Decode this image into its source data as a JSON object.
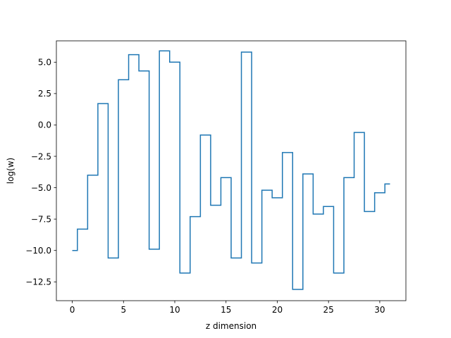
{
  "chart_data": {
    "type": "line",
    "drawstyle": "steps-mid",
    "title": "",
    "xlabel": "z dimension",
    "ylabel": "log(w)",
    "xlim": [
      -1.55,
      32.55
    ],
    "ylim": [
      -14.0,
      6.7
    ],
    "xticks": [
      0,
      5,
      10,
      15,
      20,
      25,
      30
    ],
    "yticks": [
      5.0,
      2.5,
      0.0,
      -2.5,
      -5.0,
      -7.5,
      -10.0,
      -12.5
    ],
    "xtick_labels": [
      "0",
      "5",
      "10",
      "15",
      "20",
      "25",
      "30"
    ],
    "ytick_labels": [
      "5.0",
      "2.5",
      "0.0",
      "−2.5",
      "−5.0",
      "−7.5",
      "−10.0",
      "−12.5"
    ],
    "grid": false,
    "legend": "none",
    "line_color": "#1f77b4",
    "series": [
      {
        "x": [
          0,
          1,
          2,
          3,
          4,
          5,
          6,
          7,
          8,
          9,
          10,
          11,
          12,
          13,
          14,
          15,
          16,
          17,
          18,
          19,
          20,
          21,
          22,
          23,
          24,
          25,
          26,
          27,
          28,
          29,
          30,
          31
        ],
        "values": [
          -10.0,
          -8.3,
          -4.0,
          1.7,
          -10.6,
          3.6,
          5.6,
          4.3,
          -9.9,
          5.9,
          5.0,
          -11.8,
          -7.3,
          -0.8,
          -6.4,
          -4.2,
          -10.6,
          5.8,
          -11.0,
          -5.2,
          -5.8,
          -2.2,
          -13.1,
          -3.9,
          -7.1,
          -6.5,
          -11.8,
          -4.2,
          -0.6,
          -6.9,
          -5.4,
          -4.7
        ]
      }
    ]
  }
}
